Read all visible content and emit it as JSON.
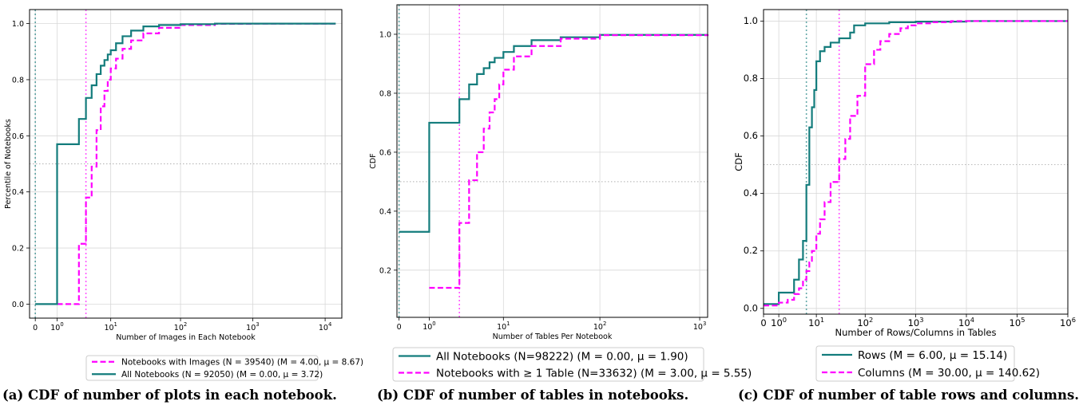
{
  "colors": {
    "teal": "#137c7c",
    "magenta": "#ff00ff",
    "grid": "#d8d8d8",
    "ref": "#b0b0b0"
  },
  "captions": [
    "(a) CDF of number of plots in each notebook.",
    "(b) CDF of number of tables in notebooks.",
    "(c) CDF of number of table rows and columns."
  ],
  "chart_data": [
    {
      "type": "line",
      "xscale": "symlog",
      "xlabel": "Number of Images in Each Notebook",
      "ylabel": "Percentile of Notebooks",
      "xlim": [
        -0.2,
        17000
      ],
      "ylim": [
        -0.05,
        1.05
      ],
      "x_ticks": [
        {
          "v": 0,
          "t": "0"
        },
        {
          "v": 1,
          "t": "10",
          "e": "0"
        },
        {
          "v": 10,
          "t": "10",
          "e": "1"
        },
        {
          "v": 100,
          "t": "10",
          "e": "2"
        },
        {
          "v": 1000,
          "t": "10",
          "e": "3"
        },
        {
          "v": 10000,
          "t": "10",
          "e": "4"
        }
      ],
      "y_ticks": [
        0.0,
        0.2,
        0.4,
        0.6,
        0.8,
        1.0
      ],
      "y_tick_labels": [
        "0.0",
        "0.2",
        "0.4",
        "0.6",
        "0.8",
        "1.0"
      ],
      "ref_hline": 0.5,
      "series": [
        {
          "name": "Notebooks with Images (N = 39540) (M = 4.00, μ = 8.67)",
          "color": "#ff00ff",
          "dash": true,
          "x": [
            1,
            3,
            4,
            5,
            6,
            7,
            8,
            9,
            10,
            12,
            15,
            20,
            30,
            50,
            100,
            300,
            1000,
            14000
          ],
          "y": [
            0.0,
            0.215,
            0.38,
            0.49,
            0.62,
            0.705,
            0.76,
            0.8,
            0.84,
            0.875,
            0.91,
            0.94,
            0.965,
            0.985,
            0.995,
            0.999,
            1.0,
            1.0
          ],
          "vline": 4
        },
        {
          "name": "All Notebooks (N = 92050) (M = 0.00, μ = 3.72)",
          "color": "#137c7c",
          "dash": false,
          "x": [
            0,
            1,
            3,
            4,
            5,
            6,
            7,
            8,
            9,
            10,
            12,
            15,
            20,
            30,
            50,
            100,
            300,
            1000,
            14000
          ],
          "y": [
            0.0,
            0.57,
            0.66,
            0.735,
            0.78,
            0.82,
            0.85,
            0.87,
            0.89,
            0.905,
            0.93,
            0.955,
            0.975,
            0.99,
            0.995,
            0.998,
            1.0,
            1.0,
            1.0
          ],
          "vline": 0
        }
      ]
    },
    {
      "type": "line",
      "xscale": "symlog",
      "xlabel": "Number of Tables Per Notebook",
      "ylabel": "CDF",
      "xlim": [
        -0.05,
        1200
      ],
      "ylim": [
        0.04,
        1.1
      ],
      "x_ticks": [
        {
          "v": 0,
          "t": "0"
        },
        {
          "v": 1,
          "t": "10",
          "e": "0"
        },
        {
          "v": 10,
          "t": "10",
          "e": "1"
        },
        {
          "v": 100,
          "t": "10",
          "e": "2"
        },
        {
          "v": 1000,
          "t": "10",
          "e": "3"
        }
      ],
      "y_ticks": [
        0.2,
        0.4,
        0.6,
        0.8,
        1.0
      ],
      "y_tick_labels": [
        "0.2",
        "0.4",
        "0.6",
        "0.8",
        "1.0"
      ],
      "ref_hline": 0.5,
      "series": [
        {
          "name": "All Notebooks (N=98222) (M = 0.00, μ = 1.90)",
          "color": "#137c7c",
          "dash": false,
          "x": [
            0,
            1,
            3,
            4,
            5,
            6,
            7,
            8,
            10,
            13,
            20,
            40,
            100,
            1200
          ],
          "y": [
            0.33,
            0.7,
            0.78,
            0.83,
            0.865,
            0.885,
            0.905,
            0.92,
            0.94,
            0.96,
            0.98,
            0.99,
            0.998,
            1.0
          ],
          "vline": 0
        },
        {
          "name": "Notebooks with ≥ 1 Table (N=33632) (M = 3.00, μ = 5.55)",
          "color": "#ff00ff",
          "dash": true,
          "x": [
            1,
            3,
            4,
            5,
            6,
            7,
            8,
            9,
            10,
            13,
            20,
            40,
            100,
            1200
          ],
          "y": [
            0.14,
            0.36,
            0.505,
            0.6,
            0.68,
            0.735,
            0.78,
            0.83,
            0.88,
            0.925,
            0.96,
            0.985,
            0.997,
            1.0
          ],
          "vline": 3
        }
      ]
    },
    {
      "type": "line",
      "xscale": "symlog",
      "xlabel": "Number of Rows/Columns in Tables",
      "ylabel": "CDF",
      "xlim": [
        0,
        1000000
      ],
      "ylim": [
        -0.02,
        1.04
      ],
      "x_ticks": [
        {
          "v": 0,
          "t": "0"
        },
        {
          "v": 1,
          "t": "10",
          "e": "0"
        },
        {
          "v": 10,
          "t": "10",
          "e": "1"
        },
        {
          "v": 100,
          "t": "10",
          "e": "2"
        },
        {
          "v": 1000,
          "t": "10",
          "e": "3"
        },
        {
          "v": 10000,
          "t": "10",
          "e": "4"
        },
        {
          "v": 100000,
          "t": "10",
          "e": "5"
        },
        {
          "v": 1000000,
          "t": "10",
          "e": "6"
        }
      ],
      "y_ticks": [
        0.0,
        0.2,
        0.4,
        0.6,
        0.8,
        1.0
      ],
      "y_tick_labels": [
        "0.0",
        "0.2",
        "0.4",
        "0.6",
        "0.8",
        "1.0"
      ],
      "ref_hline": 0.5,
      "series": [
        {
          "name": "Rows (M = 6.00, μ = 15.14)",
          "color": "#137c7c",
          "dash": false,
          "x": [
            0,
            1,
            3,
            4,
            5,
            6,
            7,
            8,
            9,
            10,
            12,
            15,
            20,
            30,
            50,
            60,
            100,
            300,
            1000,
            10000,
            1000000
          ],
          "y": [
            0.015,
            0.055,
            0.1,
            0.17,
            0.235,
            0.43,
            0.63,
            0.7,
            0.76,
            0.86,
            0.895,
            0.91,
            0.925,
            0.94,
            0.96,
            0.985,
            0.992,
            0.996,
            0.998,
            1.0,
            1.0
          ],
          "vline": 6
        },
        {
          "name": "Columns (M = 30.00, μ = 140.62)",
          "color": "#ff00ff",
          "dash": true,
          "x": [
            0,
            1,
            2,
            3,
            4,
            5,
            6,
            7,
            8,
            10,
            12,
            15,
            20,
            30,
            40,
            50,
            70,
            100,
            150,
            200,
            300,
            500,
            700,
            1000,
            2000,
            5000,
            1000000
          ],
          "y": [
            0.01,
            0.02,
            0.03,
            0.05,
            0.07,
            0.1,
            0.13,
            0.16,
            0.2,
            0.26,
            0.31,
            0.37,
            0.44,
            0.52,
            0.59,
            0.67,
            0.74,
            0.85,
            0.9,
            0.93,
            0.955,
            0.975,
            0.985,
            0.992,
            0.996,
            1.0,
            1.0
          ],
          "vline": 30
        }
      ]
    }
  ]
}
